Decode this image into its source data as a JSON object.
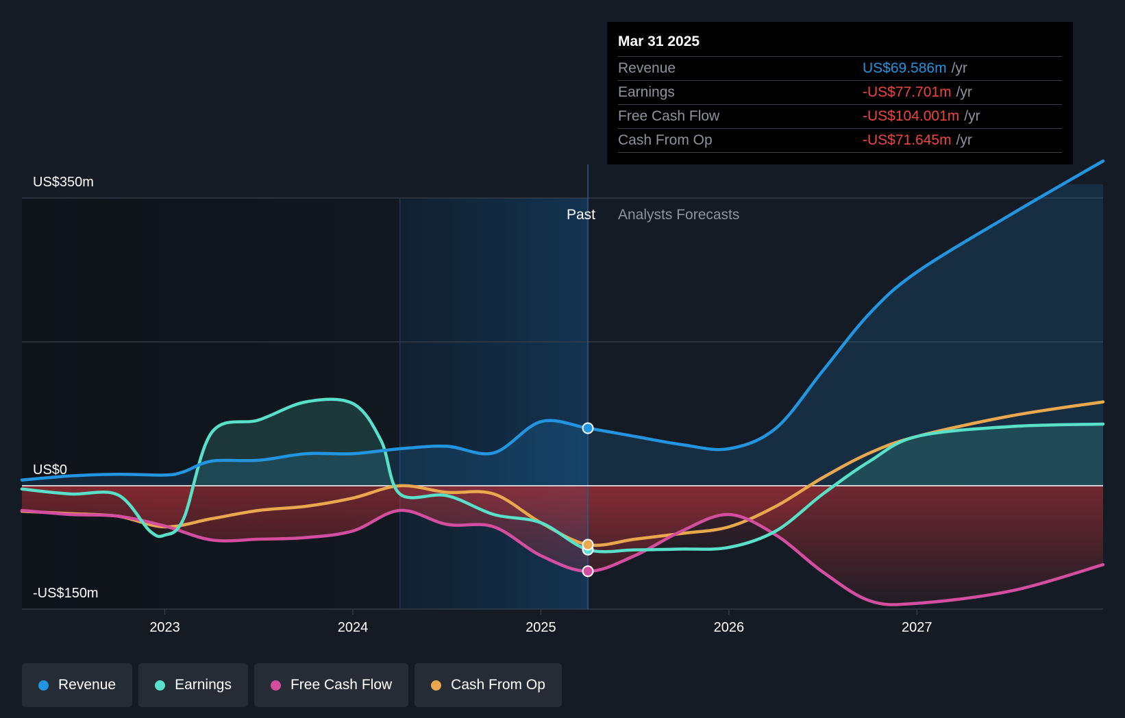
{
  "chart_data": {
    "type": "line",
    "title": "",
    "y_axis": {
      "max_label": "US$350m",
      "zero_label": "US$0",
      "min_label": "-US$150m",
      "ylim": [
        -150,
        350
      ]
    },
    "x_axis": {
      "ticks": [
        2023,
        2024,
        2025,
        2026,
        2027
      ],
      "tick_labels": [
        "2023",
        "2024",
        "2025",
        "2026",
        "2027"
      ],
      "xlim": [
        2022.24,
        2027.99
      ]
    },
    "grid": true,
    "sections": {
      "past_label": "Past",
      "forecast_label": "Analysts Forecasts",
      "highlight_start": 2024.25,
      "divider": 2025.25
    },
    "series": [
      {
        "name": "Revenue",
        "color": "#2394df",
        "area": "fill",
        "points": [
          [
            2022.24,
            7
          ],
          [
            2022.5,
            12
          ],
          [
            2022.75,
            14
          ],
          [
            2023.0,
            13
          ],
          [
            2023.1,
            17
          ],
          [
            2023.25,
            30
          ],
          [
            2023.5,
            31
          ],
          [
            2023.75,
            39
          ],
          [
            2024.0,
            39
          ],
          [
            2024.25,
            45
          ],
          [
            2024.5,
            48
          ],
          [
            2024.75,
            40
          ],
          [
            2025.0,
            78
          ],
          [
            2025.25,
            70
          ],
          [
            2025.5,
            60
          ],
          [
            2025.75,
            50
          ],
          [
            2026.0,
            45
          ],
          [
            2026.25,
            70
          ],
          [
            2026.5,
            140
          ],
          [
            2026.75,
            210
          ],
          [
            2027.0,
            260
          ],
          [
            2027.5,
            330
          ],
          [
            2027.99,
            395
          ]
        ]
      },
      {
        "name": "Earnings",
        "color": "#58e1c8",
        "area": "fill",
        "points": [
          [
            2022.24,
            -4
          ],
          [
            2022.5,
            -10
          ],
          [
            2022.75,
            -11
          ],
          [
            2022.92,
            -55
          ],
          [
            2023.0,
            -60
          ],
          [
            2023.1,
            -40
          ],
          [
            2023.25,
            65
          ],
          [
            2023.5,
            80
          ],
          [
            2023.75,
            102
          ],
          [
            2024.0,
            100
          ],
          [
            2024.15,
            55
          ],
          [
            2024.25,
            -10
          ],
          [
            2024.5,
            -12
          ],
          [
            2024.75,
            -35
          ],
          [
            2025.0,
            -45
          ],
          [
            2025.25,
            -77.701
          ],
          [
            2025.5,
            -78
          ],
          [
            2025.75,
            -77
          ],
          [
            2026.0,
            -75
          ],
          [
            2026.25,
            -55
          ],
          [
            2026.5,
            -10
          ],
          [
            2026.75,
            30
          ],
          [
            2027.0,
            60
          ],
          [
            2027.5,
            72
          ],
          [
            2027.99,
            75
          ]
        ]
      },
      {
        "name": "Free Cash Flow",
        "color": "#d44e9f",
        "area": "fill",
        "points": [
          [
            2022.24,
            -30
          ],
          [
            2022.5,
            -35
          ],
          [
            2022.75,
            -37
          ],
          [
            2023.0,
            -49
          ],
          [
            2023.25,
            -66
          ],
          [
            2023.5,
            -65
          ],
          [
            2023.75,
            -63
          ],
          [
            2024.0,
            -55
          ],
          [
            2024.25,
            -30
          ],
          [
            2024.5,
            -47
          ],
          [
            2024.75,
            -50
          ],
          [
            2025.0,
            -85
          ],
          [
            2025.25,
            -104.001
          ],
          [
            2025.5,
            -85
          ],
          [
            2025.75,
            -55
          ],
          [
            2026.0,
            -35
          ],
          [
            2026.25,
            -60
          ],
          [
            2026.5,
            -105
          ],
          [
            2026.75,
            -140
          ],
          [
            2027.0,
            -143
          ],
          [
            2027.5,
            -128
          ],
          [
            2027.99,
            -96
          ]
        ]
      },
      {
        "name": "Cash From Op",
        "color": "#e9a84e",
        "area": "none",
        "points": [
          [
            2022.24,
            -31
          ],
          [
            2022.5,
            -34
          ],
          [
            2022.75,
            -37
          ],
          [
            2023.0,
            -50
          ],
          [
            2023.25,
            -40
          ],
          [
            2023.5,
            -30
          ],
          [
            2023.75,
            -25
          ],
          [
            2024.0,
            -15
          ],
          [
            2024.25,
            0
          ],
          [
            2024.5,
            -8
          ],
          [
            2024.75,
            -10
          ],
          [
            2025.0,
            -45
          ],
          [
            2025.25,
            -71.645
          ],
          [
            2025.5,
            -65
          ],
          [
            2025.75,
            -58
          ],
          [
            2026.0,
            -50
          ],
          [
            2026.25,
            -25
          ],
          [
            2026.5,
            10
          ],
          [
            2026.75,
            40
          ],
          [
            2027.0,
            60
          ],
          [
            2027.5,
            85
          ],
          [
            2027.99,
            102
          ]
        ]
      }
    ]
  },
  "tooltip": {
    "date": "Mar 31 2025",
    "rows": [
      {
        "label": "Revenue",
        "value": "US$69.586m",
        "unit": "/yr",
        "color": "#2394df"
      },
      {
        "label": "Earnings",
        "value": "-US$77.701m",
        "unit": "/yr",
        "color": "#ef4444"
      },
      {
        "label": "Free Cash Flow",
        "value": "-US$104.001m",
        "unit": "/yr",
        "color": "#ef4444"
      },
      {
        "label": "Cash From Op",
        "value": "-US$71.645m",
        "unit": "/yr",
        "color": "#ef4444"
      }
    ]
  },
  "legend": [
    {
      "label": "Revenue",
      "color": "#2394df"
    },
    {
      "label": "Earnings",
      "color": "#58e1c8"
    },
    {
      "label": "Free Cash Flow",
      "color": "#d44e9f"
    },
    {
      "label": "Cash From Op",
      "color": "#e9a84e"
    }
  ]
}
